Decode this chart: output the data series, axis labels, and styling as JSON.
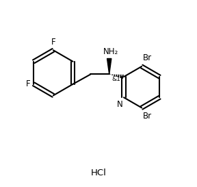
{
  "background": "#ffffff",
  "line_color": "#000000",
  "bond_width": 1.5,
  "text_color": "#000000",
  "labels": {
    "F_top": "F",
    "F_left": "F",
    "NH2": "NH₂",
    "stereo": "&1",
    "Br_top": "Br",
    "Br_bot": "Br",
    "N": "N",
    "HCl": "HCl"
  },
  "font_size": 8.5,
  "fig_width": 2.88,
  "fig_height": 2.73,
  "dpi": 100
}
